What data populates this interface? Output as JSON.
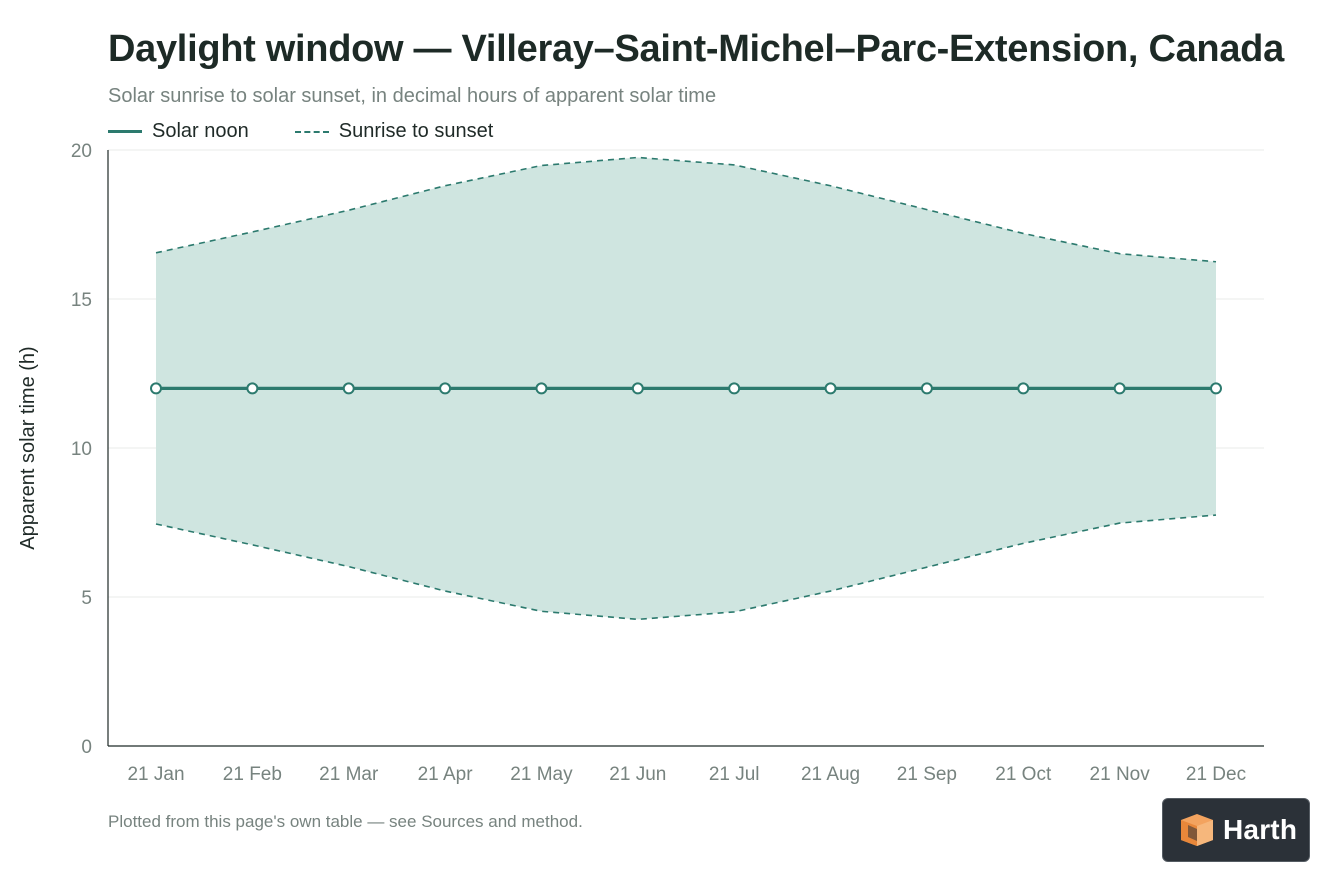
{
  "header": {
    "title": "Daylight window — Villeray–Saint-Michel–Parc-Extension, Canada",
    "subtitle": "Solar sunrise to solar sunset, in decimal hours of apparent solar time"
  },
  "legend": {
    "noon_label": "Solar noon",
    "band_label": "Sunrise to sunset"
  },
  "footnote": "Plotted from this page's own table — see Sources and method.",
  "brand": {
    "name": "Harth"
  },
  "colors": {
    "line": "#2c7a6e",
    "band": "#cfe5e0",
    "grid": "#e8ebea",
    "axis": "#1f2a27"
  },
  "chart_data": {
    "type": "area",
    "title": "Daylight window — Villeray–Saint-Michel–Parc-Extension, Canada",
    "subtitle": "Solar sunrise to solar sunset, in decimal hours of apparent solar time",
    "xlabel": "",
    "ylabel": "Apparent solar time (h)",
    "ylim": [
      0,
      20
    ],
    "yticks": [
      0,
      5,
      10,
      15,
      20
    ],
    "grid": true,
    "legend_position": "top-left",
    "categories": [
      "21 Jan",
      "21 Feb",
      "21 Mar",
      "21 Apr",
      "21 May",
      "21 Jun",
      "21 Jul",
      "21 Aug",
      "21 Sep",
      "21 Oct",
      "21 Nov",
      "21 Dec"
    ],
    "series": [
      {
        "name": "Solar noon",
        "style": "solid-line-with-markers",
        "values": [
          12,
          12,
          12,
          12,
          12,
          12,
          12,
          12,
          12,
          12,
          12,
          12
        ]
      },
      {
        "name": "Sunrise to sunset",
        "style": "dashed-band",
        "sunrise": [
          7.45,
          6.75,
          6.02,
          5.2,
          4.52,
          4.25,
          4.5,
          5.2,
          6.0,
          6.8,
          7.48,
          7.75
        ],
        "sunset": [
          16.55,
          17.25,
          17.98,
          18.8,
          19.48,
          19.75,
          19.5,
          18.8,
          18.0,
          17.2,
          16.52,
          16.25
        ]
      }
    ]
  }
}
